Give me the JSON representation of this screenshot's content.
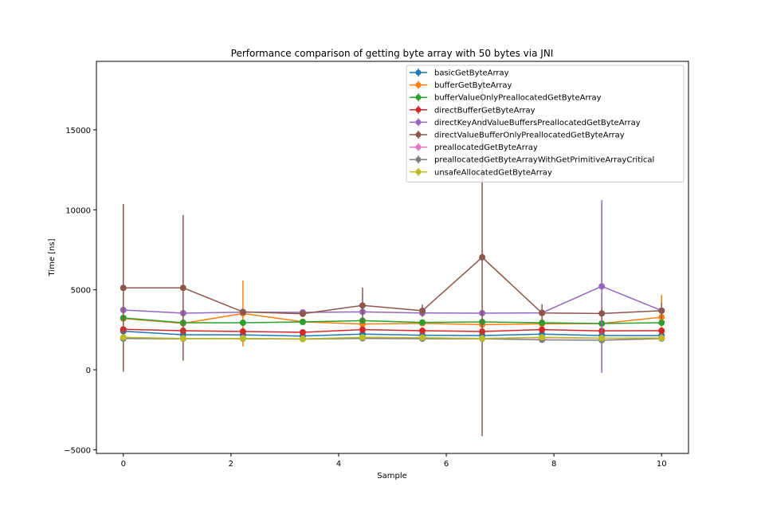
{
  "chart_data": {
    "type": "line",
    "title": "Performance comparison of getting byte array with 50 bytes via JNI",
    "xlabel": "Sample",
    "ylabel": "Time [ns]",
    "xlim": [
      -0.5,
      10.5
    ],
    "ylim": [
      -5230,
      19280
    ],
    "xticks": [
      0,
      2,
      4,
      6,
      8,
      10
    ],
    "xtick_labels": [
      "0",
      "2",
      "4",
      "6",
      "8",
      "10"
    ],
    "yticks": [
      -5000,
      0,
      5000,
      10000,
      15000
    ],
    "ytick_labels": [
      "−5000",
      "0",
      "5000",
      "10000",
      "15000"
    ],
    "grid": false,
    "legend_position": "top-right",
    "x": [
      0,
      1.111,
      2.222,
      3.333,
      4.444,
      5.556,
      6.667,
      7.778,
      8.889,
      10
    ],
    "series": [
      {
        "name": "basicGetByteArray",
        "color": "#1f77b4",
        "values": [
          2410,
          2190,
          2180,
          2110,
          2230,
          2160,
          2140,
          2230,
          2140,
          2140
        ],
        "errors": [
          80,
          60,
          60,
          60,
          60,
          60,
          60,
          60,
          60,
          60
        ]
      },
      {
        "name": "bufferGetByteArray",
        "color": "#ff7f0e",
        "values": [
          3200,
          2900,
          3520,
          3000,
          2860,
          2900,
          2820,
          2870,
          2890,
          3290
        ],
        "errors": [
          100,
          80,
          2060,
          100,
          100,
          80,
          80,
          80,
          80,
          1390
        ]
      },
      {
        "name": "bufferValueOnlyPreallocatedGetByteArray",
        "color": "#2ca02c",
        "values": [
          3240,
          2940,
          2940,
          2990,
          3070,
          2960,
          2990,
          2940,
          2890,
          2940
        ],
        "errors": [
          80,
          60,
          60,
          60,
          60,
          60,
          60,
          60,
          60,
          60
        ]
      },
      {
        "name": "directBufferGetByteArray",
        "color": "#d62728",
        "values": [
          2525,
          2440,
          2390,
          2340,
          2510,
          2440,
          2390,
          2510,
          2430,
          2440
        ],
        "errors": [
          80,
          60,
          60,
          60,
          60,
          60,
          60,
          60,
          60,
          60
        ]
      },
      {
        "name": "directKeyAndValueBuffersPreallocatedGetByteArray",
        "color": "#9467bd",
        "values": [
          3737,
          3540,
          3600,
          3590,
          3620,
          3550,
          3540,
          3560,
          5215,
          3700
        ],
        "errors": [
          80,
          60,
          60,
          60,
          60,
          60,
          60,
          60,
          5400,
          60
        ]
      },
      {
        "name": "directValueBufferOnlyPreallocatedGetByteArray",
        "color": "#8c564b",
        "values": [
          5120,
          5120,
          3620,
          3500,
          4020,
          3690,
          7030,
          3550,
          3520,
          3690
        ],
        "errors": [
          5240,
          4550,
          150,
          200,
          1110,
          380,
          11170,
          550,
          420,
          500
        ]
      },
      {
        "name": "preallocatedGetByteArray",
        "color": "#e377c2",
        "values": [
          2000,
          1960,
          1960,
          1930,
          2010,
          1990,
          1960,
          2010,
          1970,
          1980
        ],
        "errors": [
          60,
          50,
          50,
          50,
          50,
          50,
          50,
          50,
          50,
          50
        ]
      },
      {
        "name": "preallocatedGetByteArrayWithGetPrimitiveArrayCritical",
        "color": "#7f7f7f",
        "values": [
          1950,
          1940,
          1940,
          1920,
          1960,
          1940,
          1940,
          1870,
          1850,
          1950
        ],
        "errors": [
          60,
          50,
          50,
          50,
          50,
          50,
          50,
          50,
          50,
          50
        ]
      },
      {
        "name": "unsafeAllocatedGetByteArray",
        "color": "#bcbd22",
        "values": [
          2030,
          1960,
          1960,
          1930,
          2030,
          2010,
          1960,
          2030,
          1980,
          1990
        ],
        "errors": [
          60,
          50,
          50,
          50,
          50,
          50,
          50,
          50,
          50,
          50
        ]
      }
    ]
  }
}
